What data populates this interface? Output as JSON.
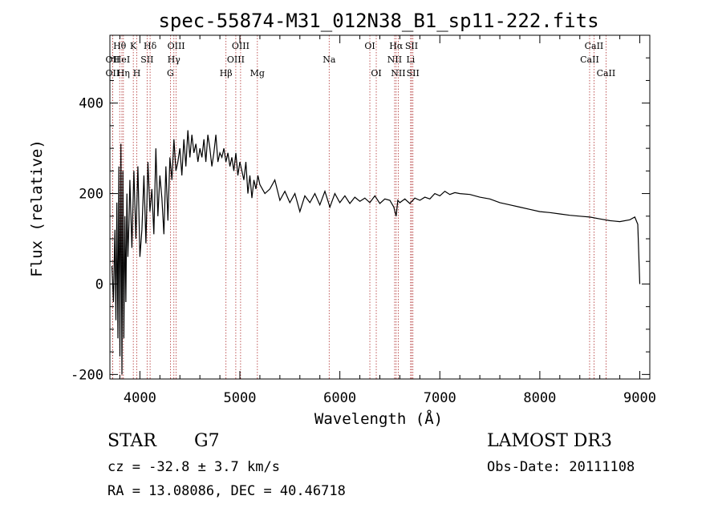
{
  "chart_data": {
    "type": "line",
    "title": "spec-55874-M31_012N38_B1_sp11-222.fits",
    "xlabel": "Wavelength (Å)",
    "ylabel": "Flux (relative)",
    "xlim": [
      3700,
      9100
    ],
    "ylim": [
      -210,
      550
    ],
    "xticks": [
      4000,
      5000,
      6000,
      7000,
      8000,
      9000
    ],
    "yticks": [
      -200,
      0,
      200,
      400
    ],
    "line_color": "#000000",
    "marker_color": "#b03030",
    "series": [
      {
        "name": "flux",
        "x": [
          3720,
          3735,
          3750,
          3760,
          3770,
          3780,
          3790,
          3800,
          3810,
          3820,
          3830,
          3840,
          3850,
          3860,
          3870,
          3880,
          3890,
          3900,
          3920,
          3940,
          3960,
          3980,
          4000,
          4020,
          4040,
          4060,
          4080,
          4100,
          4120,
          4140,
          4160,
          4180,
          4200,
          4220,
          4240,
          4260,
          4280,
          4300,
          4320,
          4340,
          4360,
          4380,
          4400,
          4420,
          4440,
          4460,
          4480,
          4500,
          4520,
          4540,
          4560,
          4580,
          4600,
          4620,
          4640,
          4660,
          4680,
          4700,
          4720,
          4740,
          4760,
          4780,
          4800,
          4820,
          4840,
          4860,
          4880,
          4900,
          4920,
          4940,
          4960,
          4980,
          5000,
          5020,
          5040,
          5060,
          5080,
          5100,
          5120,
          5140,
          5160,
          5180,
          5200,
          5250,
          5300,
          5350,
          5400,
          5450,
          5500,
          5550,
          5600,
          5650,
          5700,
          5750,
          5800,
          5850,
          5900,
          5950,
          6000,
          6050,
          6100,
          6150,
          6200,
          6250,
          6300,
          6350,
          6400,
          6450,
          6500,
          6540,
          6563,
          6580,
          6600,
          6650,
          6700,
          6750,
          6800,
          6850,
          6900,
          6950,
          7000,
          7050,
          7100,
          7150,
          7200,
          7300,
          7400,
          7500,
          7600,
          7700,
          7800,
          7900,
          8000,
          8100,
          8200,
          8300,
          8400,
          8500,
          8600,
          8700,
          8800,
          8900,
          8950,
          8980,
          9000
        ],
        "y": [
          40,
          -40,
          120,
          -80,
          180,
          -120,
          260,
          -160,
          310,
          -200,
          250,
          -120,
          150,
          -40,
          200,
          60,
          130,
          230,
          80,
          250,
          100,
          260,
          60,
          120,
          240,
          90,
          270,
          160,
          210,
          110,
          300,
          150,
          240,
          190,
          110,
          260,
          140,
          280,
          230,
          320,
          250,
          270,
          300,
          240,
          320,
          260,
          340,
          280,
          330,
          290,
          310,
          270,
          300,
          280,
          320,
          270,
          330,
          300,
          260,
          290,
          330,
          270,
          290,
          280,
          300,
          270,
          290,
          260,
          280,
          250,
          290,
          240,
          270,
          250,
          230,
          270,
          200,
          240,
          190,
          230,
          210,
          240,
          220,
          200,
          210,
          230,
          185,
          205,
          180,
          200,
          160,
          195,
          180,
          200,
          175,
          205,
          170,
          200,
          180,
          195,
          178,
          192,
          183,
          190,
          180,
          195,
          178,
          188,
          185,
          170,
          150,
          185,
          180,
          188,
          178,
          190,
          185,
          192,
          188,
          200,
          195,
          205,
          198,
          202,
          200,
          198,
          192,
          188,
          180,
          175,
          170,
          165,
          160,
          158,
          155,
          152,
          150,
          148,
          144,
          140,
          138,
          142,
          148,
          132,
          0
        ]
      }
    ],
    "lines": [
      {
        "label": "Hθ",
        "x": 3798,
        "row": 0
      },
      {
        "label": "OII",
        "x": 3727,
        "row": 1
      },
      {
        "label": "OII",
        "x": 3727,
        "row": 2
      },
      {
        "label": "HeI",
        "x": 3820,
        "row": 1
      },
      {
        "label": "Hη",
        "x": 3835,
        "row": 2
      },
      {
        "label": "K",
        "x": 3934,
        "row": 0
      },
      {
        "label": "H",
        "x": 3969,
        "row": 2
      },
      {
        "label": "SII",
        "x": 4072,
        "row": 1
      },
      {
        "label": "Hδ",
        "x": 4102,
        "row": 0
      },
      {
        "label": "OIII",
        "x": 4363,
        "row": 0
      },
      {
        "label": "Hγ",
        "x": 4340,
        "row": 1
      },
      {
        "label": "G",
        "x": 4305,
        "row": 2
      },
      {
        "label": "Hβ",
        "x": 4861,
        "row": 2
      },
      {
        "label": "OIII",
        "x": 5007,
        "row": 0
      },
      {
        "label": "OIII",
        "x": 4959,
        "row": 1
      },
      {
        "label": "Mg",
        "x": 5175,
        "row": 2
      },
      {
        "label": "Na",
        "x": 5893,
        "row": 1
      },
      {
        "label": "OI",
        "x": 6300,
        "row": 0
      },
      {
        "label": "OI",
        "x": 6364,
        "row": 2
      },
      {
        "label": "Hα",
        "x": 6563,
        "row": 0
      },
      {
        "label": "NII",
        "x": 6548,
        "row": 1
      },
      {
        "label": "NII",
        "x": 6584,
        "row": 2
      },
      {
        "label": "SII",
        "x": 6717,
        "row": 0
      },
      {
        "label": "Li",
        "x": 6708,
        "row": 1
      },
      {
        "label": "SII",
        "x": 6731,
        "row": 2
      },
      {
        "label": "CaII",
        "x": 8542,
        "row": 0
      },
      {
        "label": "CaII",
        "x": 8498,
        "row": 1
      },
      {
        "label": "CaII",
        "x": 8662,
        "row": 2
      }
    ]
  },
  "info": {
    "object_class": "STAR",
    "subclass": "G7",
    "survey": "LAMOST DR3",
    "cz": "cz = -32.8 ± 3.7 km/s",
    "obs_date": "Obs-Date: 20111108",
    "radec": "RA =  13.08086, DEC =  40.46718"
  }
}
